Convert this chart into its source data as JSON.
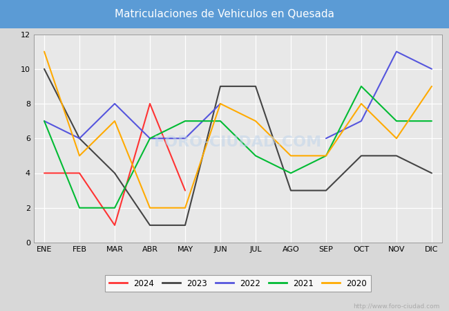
{
  "title": "Matriculaciones de Vehiculos en Quesada",
  "title_bg_color": "#5b9bd5",
  "title_text_color": "white",
  "months": [
    "ENE",
    "FEB",
    "MAR",
    "ABR",
    "MAY",
    "JUN",
    "JUL",
    "AGO",
    "SEP",
    "OCT",
    "NOV",
    "DIC"
  ],
  "series": {
    "2024": {
      "color": "#ff3333",
      "values": [
        4,
        4,
        1,
        8,
        3,
        null,
        null,
        null,
        null,
        null,
        null,
        null
      ]
    },
    "2023": {
      "color": "#444444",
      "values": [
        10,
        6,
        4,
        1,
        1,
        9,
        9,
        3,
        3,
        5,
        5,
        4
      ]
    },
    "2022": {
      "color": "#5555dd",
      "values": [
        7,
        6,
        8,
        6,
        6,
        8,
        null,
        null,
        6,
        7,
        11,
        10
      ]
    },
    "2021": {
      "color": "#00bb33",
      "values": [
        7,
        2,
        2,
        6,
        7,
        7,
        5,
        4,
        5,
        9,
        7,
        7
      ]
    },
    "2020": {
      "color": "#ffaa00",
      "values": [
        11,
        5,
        7,
        2,
        2,
        8,
        7,
        5,
        5,
        8,
        6,
        9
      ]
    }
  },
  "ylim": [
    0,
    12
  ],
  "yticks": [
    0,
    2,
    4,
    6,
    8,
    10,
    12
  ],
  "outer_bg_color": "#d8d8d8",
  "plot_bg_color": "#e8e8e8",
  "grid_color": "#ffffff",
  "watermark": "http://www.foro-ciudad.com",
  "legend_years": [
    "2024",
    "2023",
    "2022",
    "2021",
    "2020"
  ],
  "linewidth": 1.5
}
